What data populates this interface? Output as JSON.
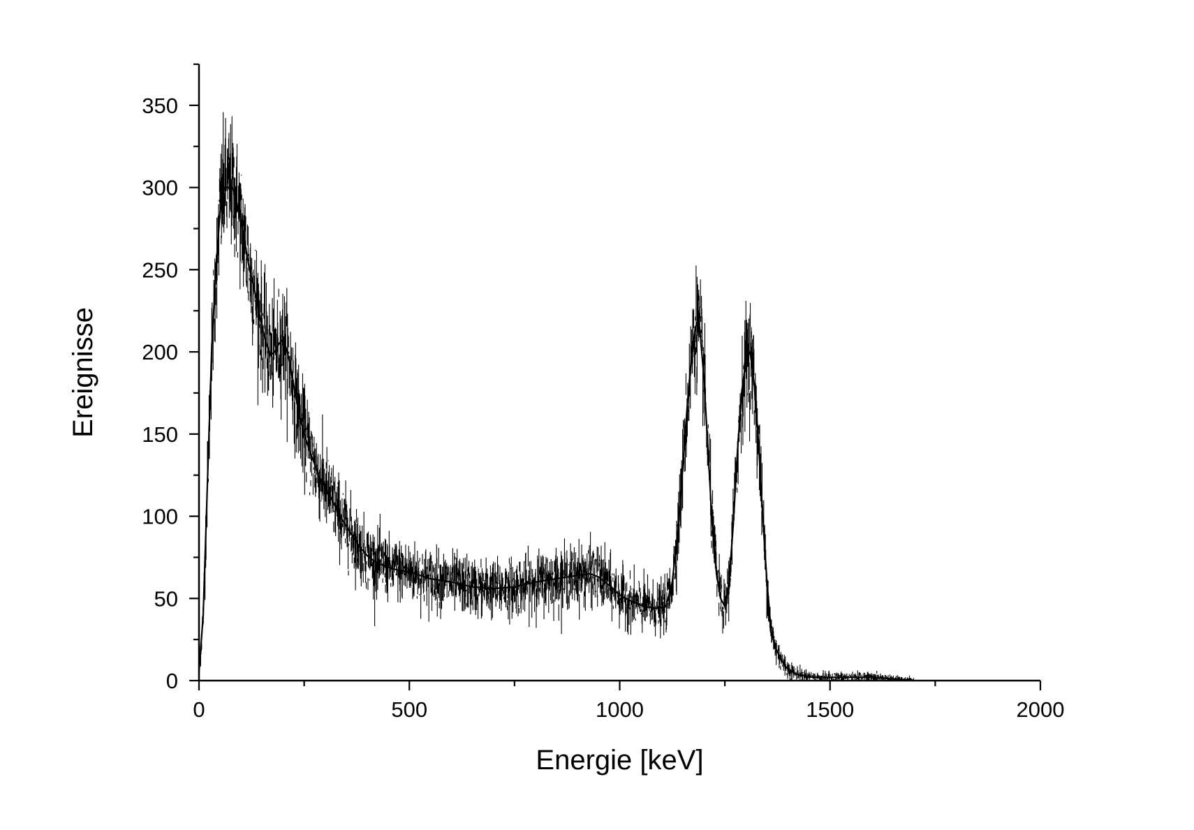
{
  "chart_data": {
    "type": "line",
    "title": "",
    "xlabel": "Energie [keV]",
    "ylabel": "Ereignisse",
    "xlim": [
      0,
      2000
    ],
    "ylim": [
      0,
      375
    ],
    "xticks": [
      0,
      500,
      1000,
      1500,
      2000
    ],
    "yticks": [
      0,
      50,
      100,
      150,
      200,
      250,
      300,
      350
    ],
    "x_minor_step": 250,
    "y_minor_step": 25,
    "grid": false,
    "line_color": "#000000",
    "series": [
      {
        "x": [
          0,
          10,
          20,
          30,
          40,
          50,
          60,
          70,
          80,
          90,
          100,
          110,
          120,
          130,
          140,
          150,
          160,
          170,
          180,
          190,
          200,
          210,
          220,
          230,
          240,
          250,
          260,
          270,
          280,
          290,
          300,
          320,
          340,
          360,
          380,
          400,
          420,
          440,
          460,
          480,
          500,
          550,
          600,
          650,
          700,
          750,
          800,
          850,
          900,
          930,
          950,
          980,
          1000,
          1030,
          1060,
          1090,
          1110,
          1125,
          1140,
          1150,
          1160,
          1170,
          1180,
          1185,
          1190,
          1200,
          1210,
          1220,
          1230,
          1240,
          1250,
          1260,
          1270,
          1280,
          1290,
          1300,
          1310,
          1320,
          1330,
          1340,
          1350,
          1360,
          1370,
          1380,
          1390,
          1400,
          1420,
          1440,
          1460,
          1480,
          1500,
          1550,
          1600,
          1650,
          1700
        ],
        "y": [
          5,
          40,
          120,
          200,
          250,
          285,
          300,
          300,
          300,
          290,
          280,
          265,
          250,
          240,
          228,
          215,
          205,
          198,
          200,
          205,
          208,
          200,
          188,
          172,
          160,
          150,
          142,
          135,
          128,
          122,
          118,
          108,
          98,
          90,
          82,
          76,
          72,
          70,
          68,
          67,
          66,
          62,
          60,
          57,
          56,
          57,
          60,
          62,
          64,
          65,
          63,
          57,
          52,
          48,
          45,
          44,
          45,
          60,
          95,
          130,
          165,
          195,
          215,
          218,
          215,
          185,
          140,
          95,
          65,
          50,
          45,
          60,
          95,
          140,
          175,
          195,
          200,
          180,
          145,
          100,
          60,
          30,
          20,
          15,
          10,
          7,
          4,
          3,
          2,
          2,
          2,
          2,
          2,
          1,
          0
        ]
      }
    ]
  }
}
